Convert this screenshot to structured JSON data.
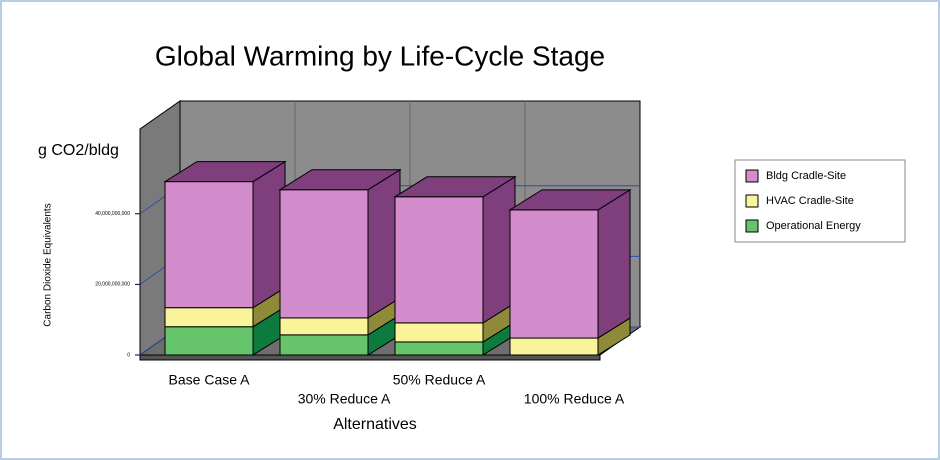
{
  "chart_data": {
    "type": "bar3d_stacked",
    "title": "Global Warming by Life-Cycle Stage",
    "unit_label": "g CO2/bldg",
    "ylabel": "Carbon Dioxide Equivalents",
    "xlabel": "Alternatives",
    "categories": [
      "Base Case A",
      "30% Reduce A",
      "50% Reduce A",
      "100% Reduce A"
    ],
    "series": [
      {
        "name": "Operational Energy",
        "color": "#66c46a",
        "side": "#0d7a3e",
        "values": [
          8000000000,
          5700000000,
          3700000000,
          0
        ]
      },
      {
        "name": "HVAC Cradle-Site",
        "color": "#f9f49a",
        "side": "#8e8a3a",
        "values": [
          5400000000,
          4800000000,
          5400000000,
          4800000000
        ]
      },
      {
        "name": "Bldg Cradle-Site",
        "color": "#d38ccc",
        "side": "#7e3f7c",
        "values": [
          35700000000,
          36300000000,
          35700000000,
          36300000000
        ]
      }
    ],
    "ylim": [
      0,
      64000000000
    ],
    "yticks": [
      0,
      {
        "value": 20000000000,
        "label": "20,000,000,000"
      },
      {
        "value": 40000000000,
        "label": "40,000,000,000"
      }
    ],
    "grid": true,
    "legend": "right"
  }
}
